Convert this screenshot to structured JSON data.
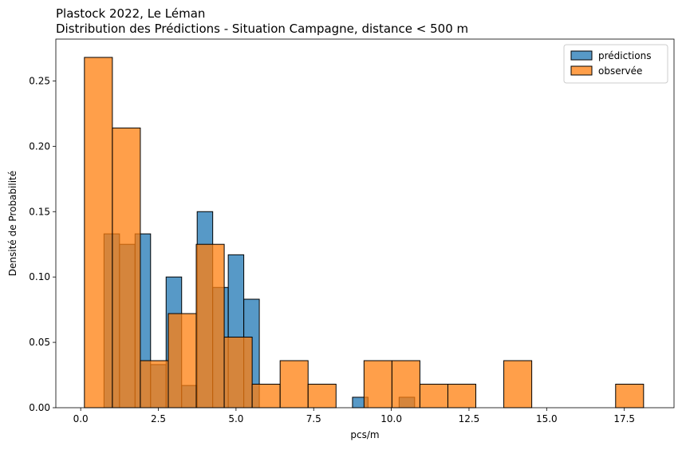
{
  "chart_data": {
    "type": "bar",
    "title_line1": "Plastock 2022, Le Léman",
    "title_line2": "Distribution des Prédictions - Situation Campagne, distance < 500 m",
    "xlabel": "pcs/m",
    "ylabel": "Densité de Probabilité",
    "xlim": [
      -0.8,
      19.1
    ],
    "ylim": [
      0,
      0.282
    ],
    "xticks": [
      {
        "value": 0,
        "label": "0.0"
      },
      {
        "value": 2.5,
        "label": "2.5"
      },
      {
        "value": 5,
        "label": "5.0"
      },
      {
        "value": 7.5,
        "label": "7.5"
      },
      {
        "value": 10,
        "label": "10.0"
      },
      {
        "value": 12.5,
        "label": "12.5"
      },
      {
        "value": 15,
        "label": "15.0"
      },
      {
        "value": 17.5,
        "label": "17.5"
      }
    ],
    "yticks": [
      {
        "value": 0,
        "label": "0.00"
      },
      {
        "value": 0.05,
        "label": "0.05"
      },
      {
        "value": 0.1,
        "label": "0.10"
      },
      {
        "value": 0.15,
        "label": "0.15"
      },
      {
        "value": 0.2,
        "label": "0.20"
      },
      {
        "value": 0.25,
        "label": "0.25"
      }
    ],
    "grid": false,
    "legend_position": "top-right",
    "series": [
      {
        "name": "prédictions",
        "color": "#1f77b4",
        "bins": [
          {
            "x0": 0.75,
            "x1": 1.25,
            "value": 0.133
          },
          {
            "x0": 1.25,
            "x1": 1.75,
            "value": 0.125
          },
          {
            "x0": 1.75,
            "x1": 2.25,
            "value": 0.133
          },
          {
            "x0": 2.25,
            "x1": 2.75,
            "value": 0.033
          },
          {
            "x0": 2.75,
            "x1": 3.25,
            "value": 0.1
          },
          {
            "x0": 3.25,
            "x1": 3.75,
            "value": 0.017
          },
          {
            "x0": 3.75,
            "x1": 4.25,
            "value": 0.15
          },
          {
            "x0": 4.25,
            "x1": 4.75,
            "value": 0.092
          },
          {
            "x0": 4.75,
            "x1": 5.25,
            "value": 0.117
          },
          {
            "x0": 5.25,
            "x1": 5.75,
            "value": 0.083
          },
          {
            "x0": 8.75,
            "x1": 9.25,
            "value": 0.008
          },
          {
            "x0": 10.25,
            "x1": 10.75,
            "value": 0.008
          }
        ]
      },
      {
        "name": "observée",
        "color": "#ff7f0e",
        "bins": [
          {
            "x0": 0.12,
            "x1": 1.02,
            "value": 0.268
          },
          {
            "x0": 1.02,
            "x1": 1.92,
            "value": 0.214
          },
          {
            "x0": 1.92,
            "x1": 2.82,
            "value": 0.036
          },
          {
            "x0": 2.82,
            "x1": 3.72,
            "value": 0.072
          },
          {
            "x0": 3.72,
            "x1": 4.62,
            "value": 0.125
          },
          {
            "x0": 4.62,
            "x1": 5.52,
            "value": 0.054
          },
          {
            "x0": 5.52,
            "x1": 6.42,
            "value": 0.018
          },
          {
            "x0": 6.42,
            "x1": 7.32,
            "value": 0.036
          },
          {
            "x0": 7.32,
            "x1": 8.22,
            "value": 0.018
          },
          {
            "x0": 8.22,
            "x1": 9.12,
            "value": 0
          },
          {
            "x0": 9.12,
            "x1": 10.02,
            "value": 0.036
          },
          {
            "x0": 10.02,
            "x1": 10.92,
            "value": 0.036
          },
          {
            "x0": 10.92,
            "x1": 11.82,
            "value": 0.018
          },
          {
            "x0": 11.82,
            "x1": 12.72,
            "value": 0.018
          },
          {
            "x0": 12.72,
            "x1": 13.62,
            "value": 0
          },
          {
            "x0": 13.62,
            "x1": 14.52,
            "value": 0.036
          },
          {
            "x0": 14.52,
            "x1": 15.42,
            "value": 0
          },
          {
            "x0": 15.42,
            "x1": 16.32,
            "value": 0
          },
          {
            "x0": 16.32,
            "x1": 17.22,
            "value": 0
          },
          {
            "x0": 17.22,
            "x1": 18.12,
            "value": 0.018
          }
        ]
      }
    ]
  }
}
